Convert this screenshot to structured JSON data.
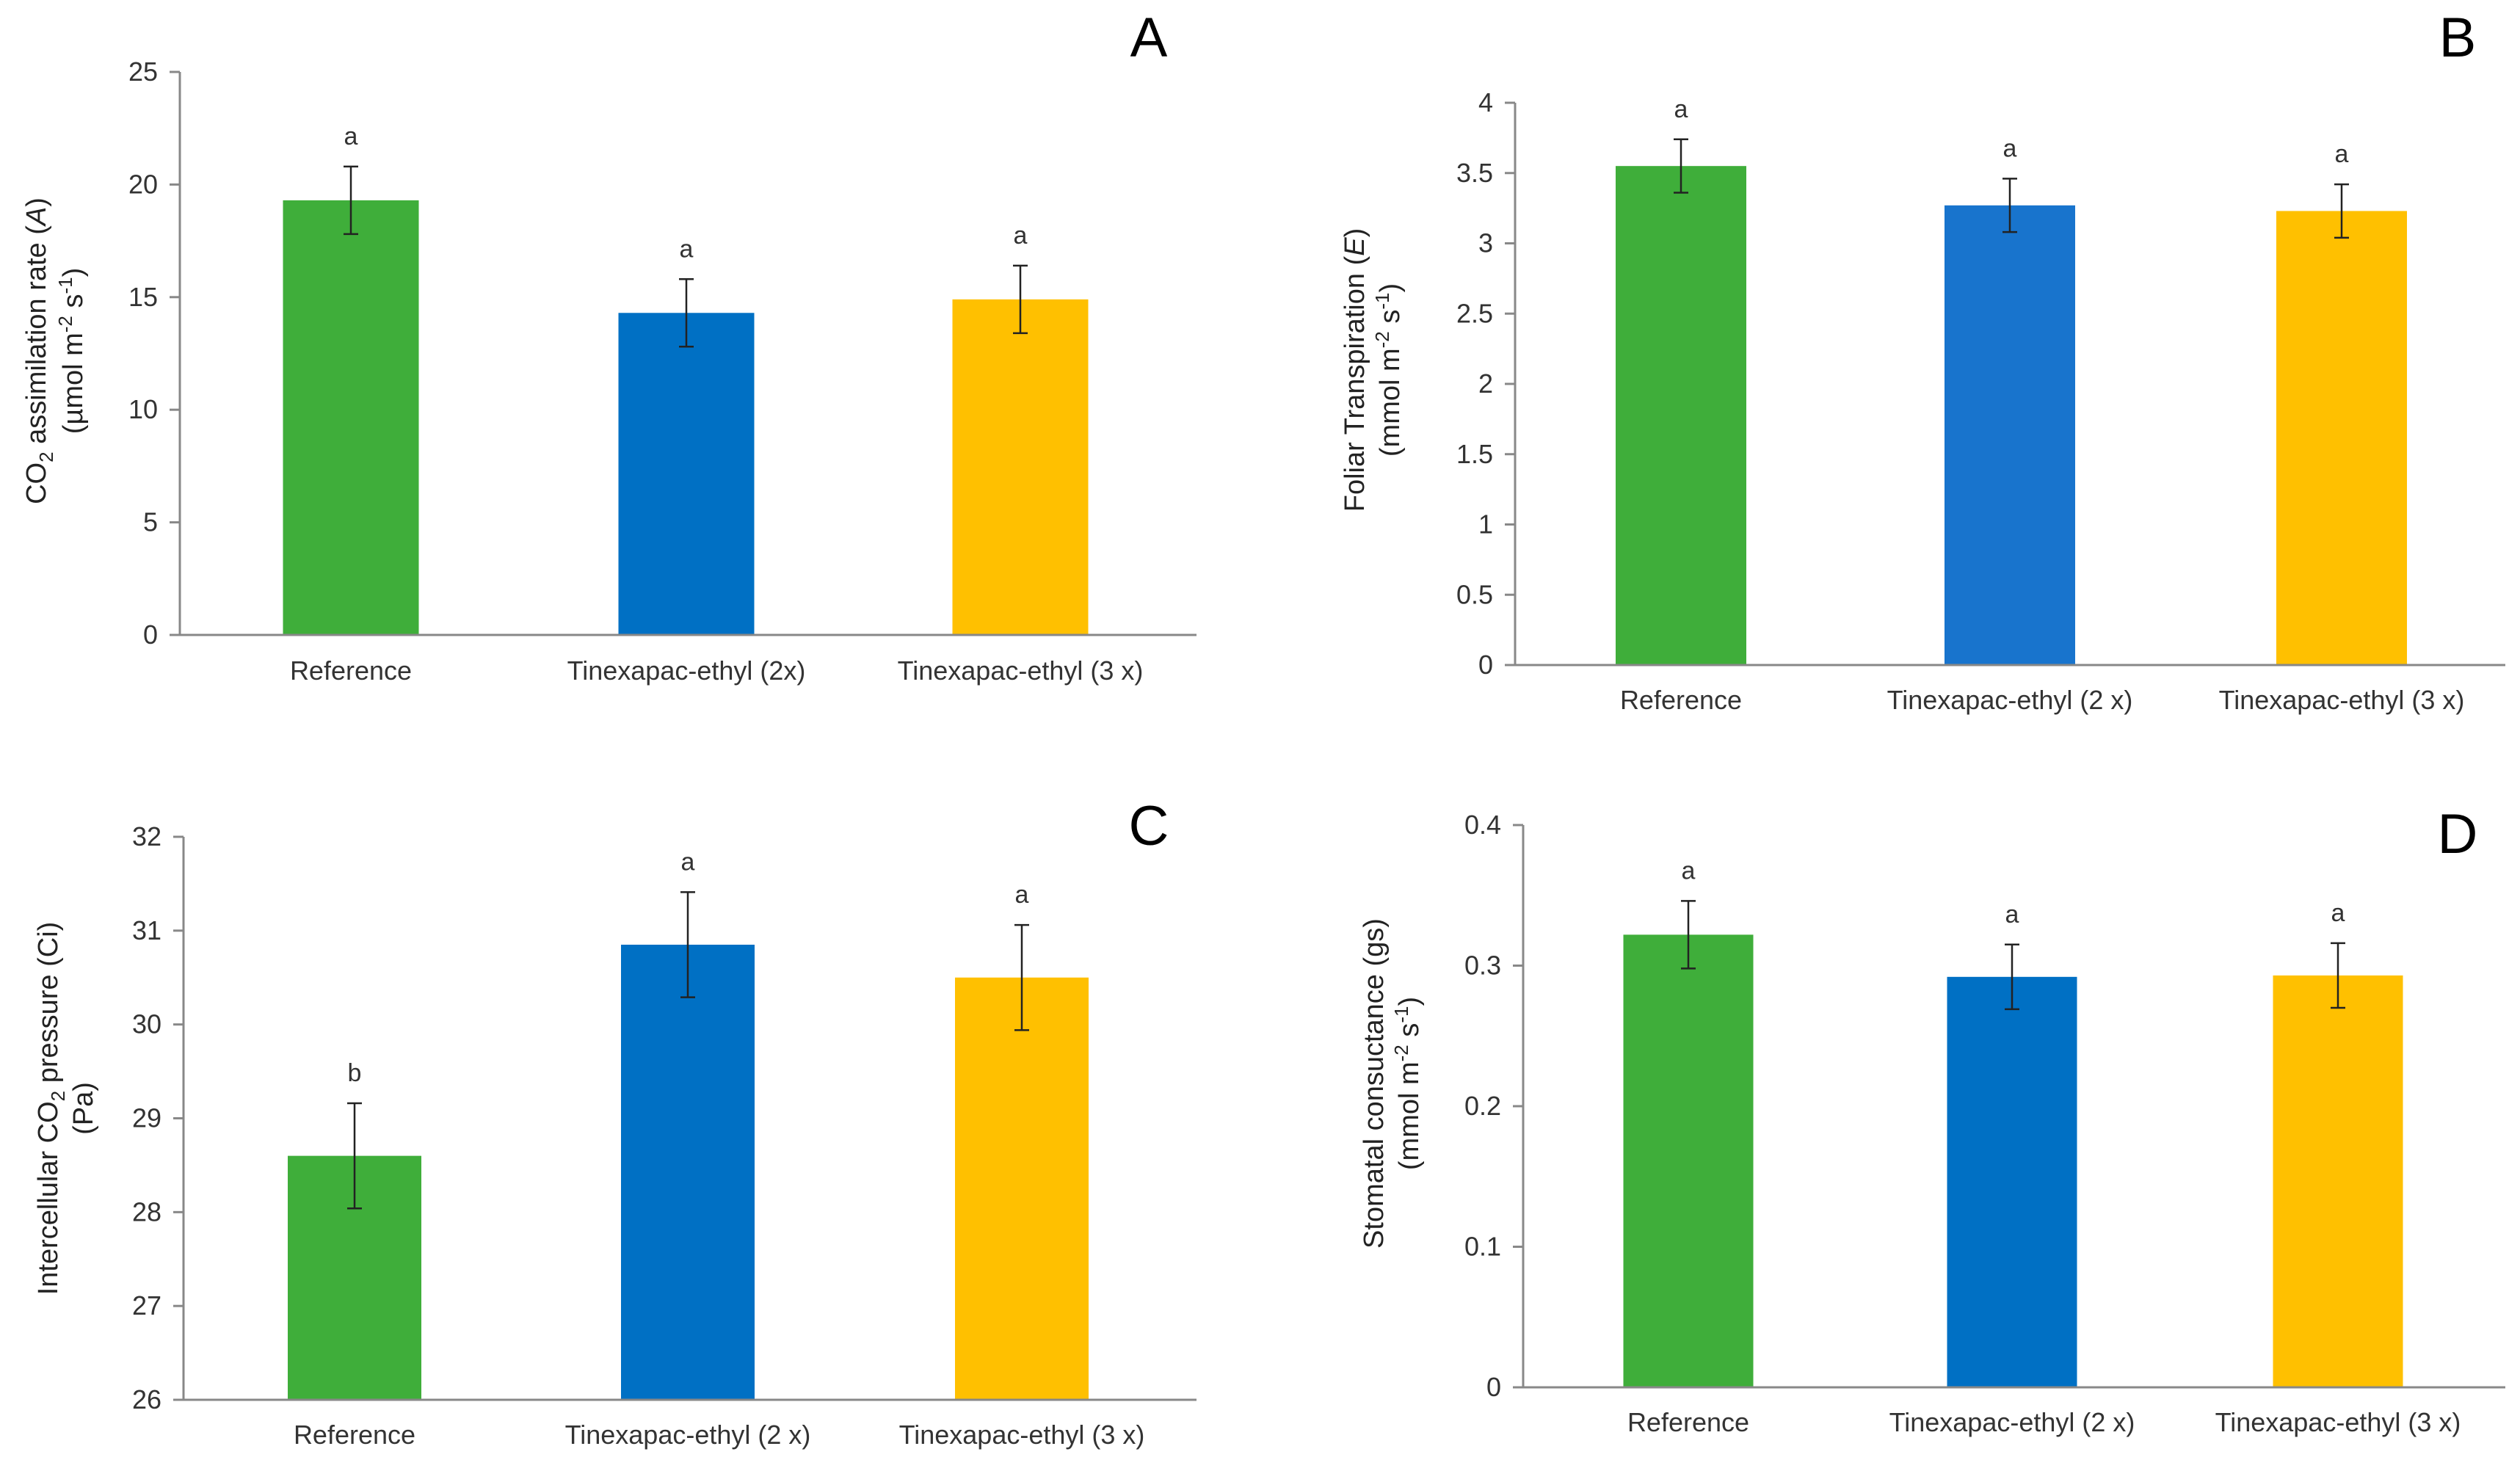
{
  "chart_data": [
    {
      "type": "bar",
      "panel": "A",
      "categories": [
        "Reference",
        "Tinexapac-ethyl (2x)",
        "Tinexapac-ethyl (3 x)"
      ],
      "values": [
        19.3,
        14.3,
        14.9
      ],
      "errors": [
        1.5,
        1.5,
        1.5
      ],
      "significance": [
        "a",
        "a",
        "a"
      ],
      "colors": [
        "#3fae3a",
        "#0070c4",
        "#ffc000"
      ],
      "ylabel_line1_pre": "CO",
      "ylabel_line1_sub": "2",
      "ylabel_line1_post": " assimilation rate (",
      "ylabel_line1_var": "A",
      "ylabel_line1_end": ")",
      "ylabel_line2_pre": "(µmol m",
      "ylabel_line2_sup1": "-2",
      "ylabel_line2_mid": " s",
      "ylabel_line2_sup2": "-1",
      "ylabel_line2_end": ")",
      "ylim": [
        0,
        25
      ],
      "yticks": [
        "0",
        "5",
        "10",
        "15",
        "20",
        "25"
      ],
      "ytick_values": [
        0,
        5,
        10,
        15,
        20,
        25
      ]
    },
    {
      "type": "bar",
      "panel": "B",
      "categories": [
        "Reference",
        "Tinexapac-ethyl (2 x)",
        "Tinexapac-ethyl (3 x)"
      ],
      "values": [
        3.55,
        3.27,
        3.23
      ],
      "errors": [
        0.19,
        0.19,
        0.19
      ],
      "significance": [
        "a",
        "a",
        "a"
      ],
      "colors": [
        "#3fae3a",
        "#1874cd",
        "#ffc000"
      ],
      "ylabel_line1_pre": "Foliar Transpiration (",
      "ylabel_line1_var": "E",
      "ylabel_line1_end": ")",
      "ylabel_line2_pre": "(mmol m",
      "ylabel_line2_sup1": "-2",
      "ylabel_line2_mid": " s",
      "ylabel_line2_sup2": "-1",
      "ylabel_line2_end": ")",
      "ylim": [
        0,
        4
      ],
      "yticks": [
        "0",
        "0.5",
        "1",
        "1.5",
        "2",
        "2.5",
        "3",
        "3.5",
        "4"
      ],
      "ytick_values": [
        0,
        0.5,
        1,
        1.5,
        2,
        2.5,
        3,
        3.5,
        4
      ]
    },
    {
      "type": "bar",
      "panel": "C",
      "categories": [
        "Reference",
        "Tinexapac-ethyl (2 x)",
        "Tinexapac-ethyl (3 x)"
      ],
      "values": [
        28.6,
        30.85,
        30.5
      ],
      "errors": [
        0.56,
        0.56,
        0.56
      ],
      "significance": [
        "b",
        "a",
        "a"
      ],
      "colors": [
        "#3fae3a",
        "#0070c4",
        "#ffc000"
      ],
      "ylabel_line1_pre": "Intercellular CO",
      "ylabel_line1_sub": "2",
      "ylabel_line1_post": " pressure (Ci)",
      "ylabel_line2_pre": "(Pa)",
      "ylim": [
        26,
        32
      ],
      "yticks": [
        "26",
        "27",
        "28",
        "29",
        "30",
        "31",
        "32"
      ],
      "ytick_values": [
        26,
        27,
        28,
        29,
        30,
        31,
        32
      ]
    },
    {
      "type": "bar",
      "panel": "D",
      "categories": [
        "Reference",
        "Tinexapac-ethyl (2 x)",
        "Tinexapac-ethyl (3 x)"
      ],
      "values": [
        0.322,
        0.292,
        0.293
      ],
      "errors": [
        0.024,
        0.023,
        0.023
      ],
      "significance": [
        "a",
        "a",
        "a"
      ],
      "colors": [
        "#3fae3a",
        "#0070c4",
        "#ffc000"
      ],
      "ylabel_line1_pre": "Stomatal consuctance (gs)",
      "ylabel_line2_pre": "(mmol m",
      "ylabel_line2_sup1": "-2",
      "ylabel_line2_mid": " s",
      "ylabel_line2_sup2": "-1",
      "ylabel_line2_end": ")",
      "ylim": [
        0,
        0.4
      ],
      "yticks": [
        "0",
        "0.1",
        "0.2",
        "0.3",
        "0.4"
      ],
      "ytick_values": [
        0,
        0.1,
        0.2,
        0.3,
        0.4
      ]
    }
  ]
}
